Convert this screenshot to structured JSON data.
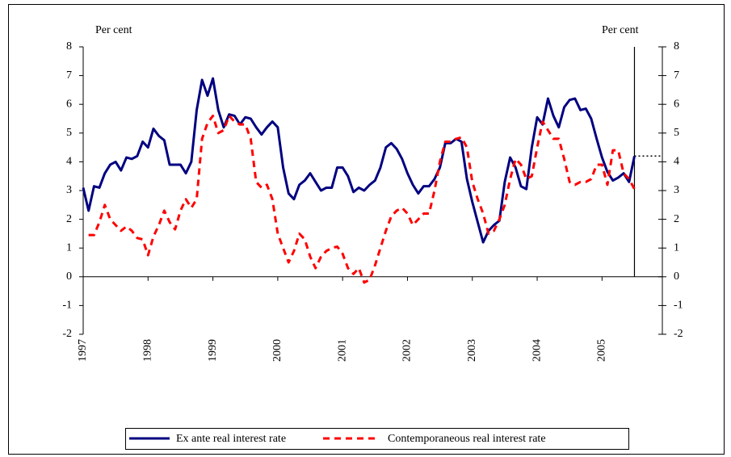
{
  "chart_data": {
    "type": "line",
    "y_label": "Per cent",
    "y2_label": "Per cent",
    "x": [
      1997.0,
      1997.083,
      1997.167,
      1997.25,
      1997.333,
      1997.417,
      1997.5,
      1997.583,
      1997.667,
      1997.75,
      1997.833,
      1997.917,
      1998.0,
      1998.083,
      1998.167,
      1998.25,
      1998.333,
      1998.417,
      1998.5,
      1998.583,
      1998.667,
      1998.75,
      1998.833,
      1998.917,
      1999.0,
      1999.083,
      1999.167,
      1999.25,
      1999.333,
      1999.417,
      1999.5,
      1999.583,
      1999.667,
      1999.75,
      1999.833,
      1999.917,
      2000.0,
      2000.083,
      2000.167,
      2000.25,
      2000.333,
      2000.417,
      2000.5,
      2000.583,
      2000.667,
      2000.75,
      2000.833,
      2000.917,
      2001.0,
      2001.083,
      2001.167,
      2001.25,
      2001.333,
      2001.417,
      2001.5,
      2001.583,
      2001.667,
      2001.75,
      2001.833,
      2001.917,
      2002.0,
      2002.083,
      2002.167,
      2002.25,
      2002.333,
      2002.417,
      2002.5,
      2002.583,
      2002.667,
      2002.75,
      2002.833,
      2002.917,
      2003.0,
      2003.083,
      2003.167,
      2003.25,
      2003.333,
      2003.417,
      2003.5,
      2003.583,
      2003.667,
      2003.75,
      2003.833,
      2003.917,
      2004.0,
      2004.083,
      2004.167,
      2004.25,
      2004.333,
      2004.417,
      2004.5,
      2004.583,
      2004.667,
      2004.75,
      2004.833,
      2004.917,
      2005.0,
      2005.083,
      2005.167,
      2005.25,
      2005.333,
      2005.417,
      2005.5
    ],
    "series": [
      {
        "name": "Ex ante real interest rate",
        "color": "#000080",
        "dash": false,
        "values": [
          3.1,
          2.3,
          3.15,
          3.1,
          3.6,
          3.9,
          4.0,
          3.7,
          4.15,
          4.1,
          4.2,
          4.7,
          4.5,
          5.15,
          4.9,
          4.75,
          3.9,
          3.9,
          3.9,
          3.6,
          4.0,
          5.8,
          6.85,
          6.3,
          6.9,
          5.8,
          5.2,
          5.65,
          5.6,
          5.3,
          5.55,
          5.5,
          5.2,
          4.95,
          5.2,
          5.4,
          5.2,
          3.8,
          2.9,
          2.7,
          3.2,
          3.35,
          3.6,
          3.3,
          3.0,
          3.1,
          3.1,
          3.8,
          3.8,
          3.5,
          2.95,
          3.1,
          3.0,
          3.2,
          3.35,
          3.8,
          4.5,
          4.65,
          4.45,
          4.1,
          3.6,
          3.2,
          2.9,
          3.15,
          3.15,
          3.4,
          3.8,
          4.65,
          4.65,
          4.8,
          4.7,
          3.4,
          2.6,
          1.9,
          1.2,
          1.6,
          1.8,
          1.95,
          3.3,
          4.15,
          3.8,
          3.15,
          3.05,
          4.5,
          5.55,
          5.3,
          6.2,
          5.6,
          5.2,
          5.9,
          6.15,
          6.2,
          5.8,
          5.85,
          5.5,
          4.8,
          4.15,
          3.65,
          3.35,
          3.45,
          3.6,
          3.3,
          4.2
        ]
      },
      {
        "name": "Contemporaneous real interest rate",
        "color": "#ff0000",
        "dash": true,
        "values": [
          null,
          1.45,
          1.45,
          1.9,
          2.5,
          2.0,
          1.8,
          1.6,
          1.75,
          1.6,
          1.35,
          1.3,
          0.75,
          1.4,
          1.8,
          2.3,
          1.9,
          1.65,
          2.3,
          2.7,
          2.4,
          2.7,
          4.8,
          5.35,
          5.6,
          5.0,
          5.1,
          5.6,
          5.4,
          5.3,
          5.3,
          4.8,
          3.3,
          3.1,
          3.2,
          2.7,
          1.5,
          1.0,
          0.5,
          0.9,
          1.5,
          1.3,
          0.7,
          0.3,
          0.7,
          0.9,
          1.0,
          1.05,
          0.8,
          0.3,
          0.1,
          0.3,
          -0.2,
          -0.1,
          0.4,
          1.0,
          1.6,
          2.1,
          2.3,
          2.4,
          2.2,
          1.8,
          2.0,
          2.2,
          2.2,
          3.0,
          4.0,
          4.7,
          4.7,
          4.8,
          4.85,
          4.5,
          3.3,
          2.7,
          2.2,
          1.5,
          1.6,
          2.0,
          2.5,
          3.4,
          4.1,
          3.9,
          3.4,
          3.5,
          4.5,
          5.4,
          5.1,
          4.8,
          4.8,
          4.1,
          3.3,
          3.2,
          3.3,
          3.3,
          3.4,
          3.9,
          3.9,
          3.2,
          4.4,
          4.4,
          3.6,
          3.4,
          3.05
        ]
      }
    ],
    "xlim": [
      1997,
      2005.93
    ],
    "xticks": [
      1997,
      1998,
      1999,
      2000,
      2001,
      2002,
      2003,
      2004,
      2005
    ],
    "ylim": [
      -2,
      8
    ],
    "yticks": [
      -2,
      -1,
      0,
      1,
      2,
      3,
      4,
      5,
      6,
      7,
      8
    ],
    "y2lim": [
      -2,
      8
    ],
    "y2ticks": [
      -2,
      -1,
      0,
      1,
      2,
      3,
      4,
      5,
      6,
      7,
      8
    ],
    "reference_lines": {
      "vertical_x": 2005.5,
      "horizontal_y": 4.2
    },
    "legend": "bottom"
  }
}
